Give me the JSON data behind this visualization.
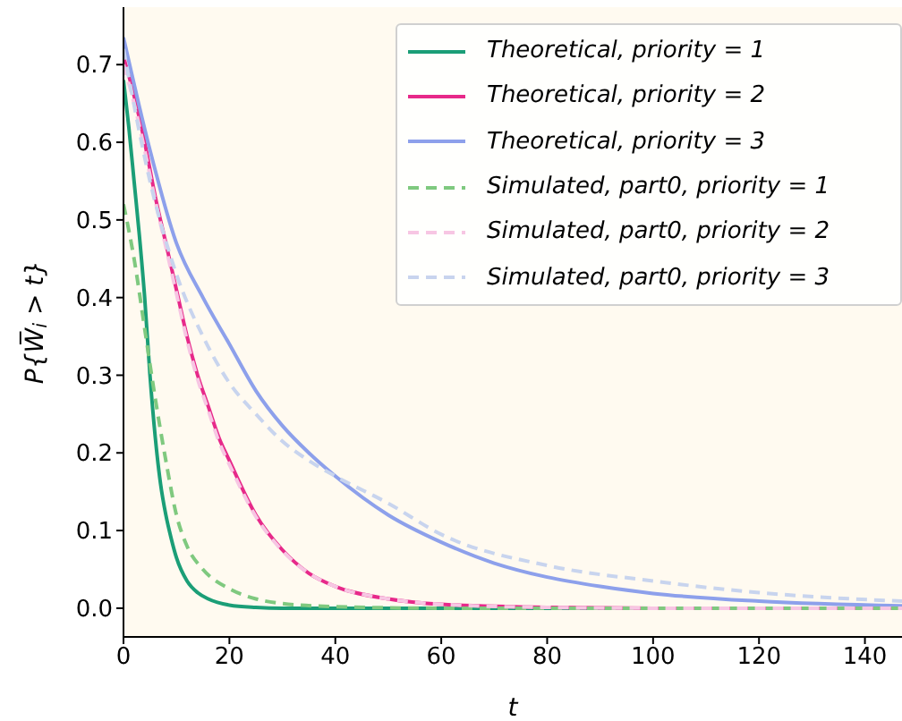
{
  "chart_data": {
    "type": "line",
    "xlabel": "t",
    "ylabel": "P{W̅$_{i}$ > t}",
    "xlim": [
      0,
      147
    ],
    "ylim": [
      -0.037,
      0.774
    ],
    "xticks": [
      0,
      20,
      40,
      60,
      80,
      100,
      120,
      140
    ],
    "yticks": [
      {
        "value": 0,
        "label": "0.0"
      },
      0.1,
      0.2,
      0.3,
      0.4,
      0.5,
      0.6,
      0.7
    ],
    "grid": false,
    "legend": "top right",
    "marker": "none",
    "series": [
      {
        "name": "Theoretical, priority = 1",
        "color": "#1b9e77",
        "line_style": "solid",
        "x": [
          0,
          1,
          2,
          3,
          4,
          5,
          6,
          7,
          8,
          9,
          10,
          12,
          14,
          16,
          20,
          25,
          30,
          147
        ],
        "values": [
          0.68,
          0.62,
          0.55,
          0.48,
          0.4,
          0.3,
          0.22,
          0.16,
          0.12,
          0.09,
          0.065,
          0.035,
          0.02,
          0.012,
          0.004,
          0.001,
          0,
          0
        ]
      },
      {
        "name": "Theoretical, priority = 2",
        "color": "#e7298a",
        "line_style": "solid",
        "x": [
          0,
          2,
          4,
          6,
          8,
          10,
          12,
          14,
          16,
          18,
          20,
          25,
          30,
          35,
          40,
          50,
          60,
          80,
          100,
          147
        ],
        "values": [
          0.71,
          0.66,
          0.6,
          0.53,
          0.47,
          0.41,
          0.35,
          0.3,
          0.26,
          0.22,
          0.19,
          0.12,
          0.075,
          0.045,
          0.028,
          0.012,
          0.005,
          0.001,
          0,
          0
        ]
      },
      {
        "name": "Theoretical, priority = 3",
        "color": "#8da0eb",
        "line_style": "solid",
        "x": [
          0,
          5,
          10,
          15,
          20,
          25,
          30,
          35,
          40,
          50,
          60,
          70,
          80,
          90,
          100,
          120,
          147
        ],
        "values": [
          0.735,
          0.59,
          0.47,
          0.4,
          0.34,
          0.28,
          0.235,
          0.2,
          0.17,
          0.12,
          0.085,
          0.058,
          0.04,
          0.028,
          0.019,
          0.009,
          0.003
        ]
      },
      {
        "name": "Simulated, part0, priority = 1",
        "color": "#7fc97f",
        "line_style": "dashed",
        "x": [
          0,
          2,
          4,
          6,
          8,
          10,
          12,
          15,
          20,
          25,
          30,
          40,
          60,
          147
        ],
        "values": [
          0.52,
          0.45,
          0.36,
          0.27,
          0.19,
          0.12,
          0.08,
          0.05,
          0.025,
          0.012,
          0.006,
          0.002,
          0,
          0
        ]
      },
      {
        "name": "Simulated, part0, priority = 2",
        "color": "#f7c6e3",
        "line_style": "dashed",
        "x": [
          0,
          2,
          4,
          6,
          8,
          10,
          12,
          14,
          16,
          18,
          20,
          25,
          30,
          35,
          40,
          50,
          60,
          80,
          100,
          147
        ],
        "values": [
          0.7,
          0.65,
          0.59,
          0.525,
          0.465,
          0.405,
          0.345,
          0.295,
          0.255,
          0.215,
          0.185,
          0.118,
          0.074,
          0.045,
          0.028,
          0.012,
          0.005,
          0.001,
          0,
          0
        ]
      },
      {
        "name": "Simulated, part0, priority = 3",
        "color": "#c8d4ee",
        "line_style": "dashed",
        "x": [
          0,
          5,
          10,
          15,
          20,
          25,
          30,
          35,
          40,
          50,
          60,
          80,
          100,
          120,
          147
        ],
        "values": [
          0.72,
          0.55,
          0.43,
          0.35,
          0.29,
          0.25,
          0.215,
          0.19,
          0.17,
          0.135,
          0.095,
          0.055,
          0.035,
          0.02,
          0.009
        ]
      }
    ]
  }
}
